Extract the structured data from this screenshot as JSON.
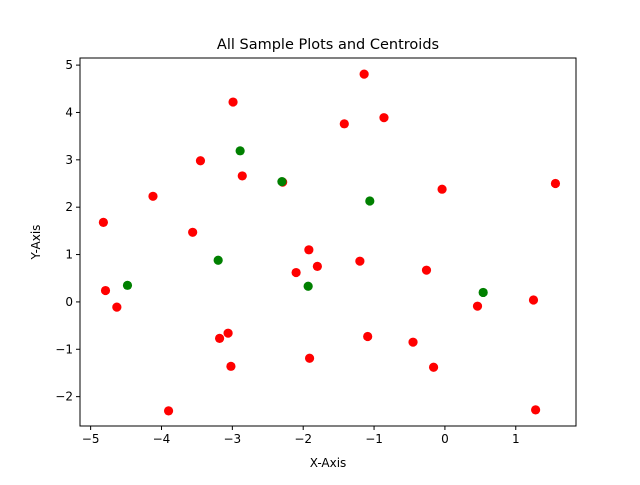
{
  "chart_data": {
    "type": "scatter",
    "title": "All Sample Plots and Centroids",
    "xlabel": "X-Axis",
    "ylabel": "Y-Axis",
    "xlim": [
      -5.15,
      1.85
    ],
    "ylim": [
      -2.62,
      5.15
    ],
    "xticks": [
      -5,
      -4,
      -3,
      -2,
      -1,
      0,
      1
    ],
    "yticks": [
      -2,
      -1,
      0,
      1,
      2,
      3,
      4,
      5
    ],
    "xtick_labels": [
      "−5",
      "−4",
      "−3",
      "−2",
      "−1",
      "0",
      "1"
    ],
    "ytick_labels": [
      "−2",
      "−1",
      "0",
      "1",
      "2",
      "3",
      "4",
      "5"
    ],
    "grid": false,
    "series": [
      {
        "color": "#ff0000",
        "points": [
          [
            -4.82,
            1.68
          ],
          [
            -4.79,
            0.24
          ],
          [
            -4.63,
            -0.11
          ],
          [
            -4.12,
            2.23
          ],
          [
            -3.9,
            -2.3
          ],
          [
            -3.56,
            1.47
          ],
          [
            -3.45,
            2.98
          ],
          [
            -3.18,
            -0.77
          ],
          [
            -3.06,
            -0.66
          ],
          [
            -3.02,
            -1.36
          ],
          [
            -2.99,
            4.22
          ],
          [
            -2.86,
            2.66
          ],
          [
            -2.29,
            2.53
          ],
          [
            -2.1,
            0.62
          ],
          [
            -1.92,
            1.1
          ],
          [
            -1.91,
            -1.19
          ],
          [
            -1.8,
            0.75
          ],
          [
            -1.42,
            3.76
          ],
          [
            -1.2,
            0.86
          ],
          [
            -1.14,
            4.81
          ],
          [
            -1.09,
            -0.73
          ],
          [
            -0.86,
            3.89
          ],
          [
            -0.45,
            -0.85
          ],
          [
            -0.26,
            0.67
          ],
          [
            -0.16,
            -1.38
          ],
          [
            -0.04,
            2.38
          ],
          [
            0.46,
            -0.09
          ],
          [
            1.25,
            0.04
          ],
          [
            1.28,
            -2.28
          ],
          [
            1.56,
            2.5
          ]
        ]
      },
      {
        "color": "#008000",
        "points": [
          [
            -4.48,
            0.35
          ],
          [
            -3.2,
            0.88
          ],
          [
            -2.89,
            3.19
          ],
          [
            -2.3,
            2.54
          ],
          [
            -1.93,
            0.33
          ],
          [
            -1.06,
            2.13
          ],
          [
            0.54,
            0.2
          ]
        ]
      }
    ]
  }
}
